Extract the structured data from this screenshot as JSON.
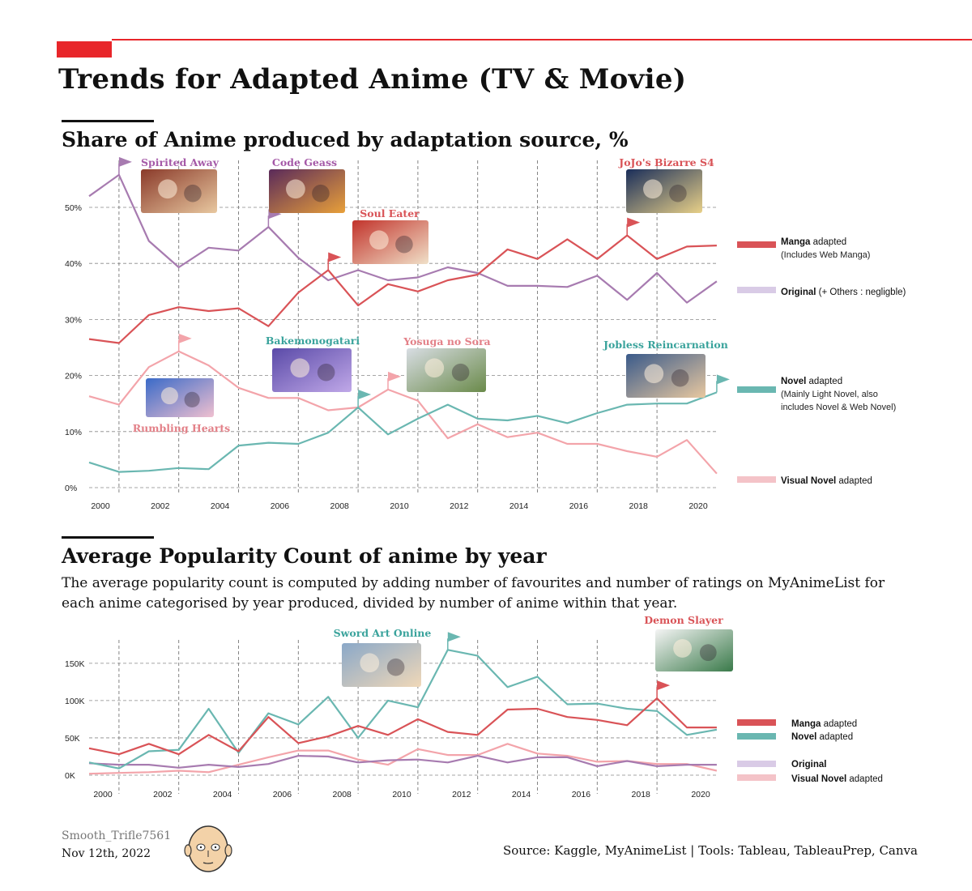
{
  "header": {
    "title": "Trends for Adapted Anime (TV & Movie)",
    "accent_color": "#e8262a"
  },
  "share_section": {
    "title": "Share of Anime produced by adaptation source, %"
  },
  "popularity_section": {
    "title": "Average Popularity Count of anime by year",
    "description": "The average popularity count is computed by adding number of favourites and number of ratings on MyAnimeList for each anime categorised by year produced, divided by number of anime within that year."
  },
  "footer": {
    "author": "Smooth_Trifle7561",
    "date": "Nov 12th, 2022",
    "source": "Source: Kaggle, MyAnimeList | Tools: Tableau, TableauPrep, Canva"
  },
  "chart_data": [
    {
      "type": "line",
      "title": "Share of Anime produced by adaptation source, %",
      "x": [
        2000,
        2001,
        2002,
        2003,
        2004,
        2005,
        2006,
        2007,
        2008,
        2009,
        2010,
        2011,
        2012,
        2013,
        2014,
        2015,
        2016,
        2017,
        2018,
        2019,
        2020,
        2021
      ],
      "x_ticks": [
        "2000",
        "2002",
        "2004",
        "2006",
        "2008",
        "2010",
        "2012",
        "2014",
        "2016",
        "2018",
        "2020"
      ],
      "y_ticks": [
        "0%",
        "10%",
        "20%",
        "30%",
        "40%",
        "50%"
      ],
      "ylim": [
        0,
        60
      ],
      "grid": true,
      "legend_position": "right",
      "series": [
        {
          "key": "manga",
          "color": "#d95357",
          "values": [
            26.5,
            25.8,
            30.8,
            32.2,
            31.5,
            32.0,
            28.8,
            34.8,
            38.8,
            32.5,
            36.3,
            35.0,
            37.0,
            38.0,
            42.5,
            40.8,
            44.3,
            40.8,
            45.0,
            40.8,
            43.0,
            43.2
          ]
        },
        {
          "key": "original",
          "color": "#a77bb0",
          "values": [
            52.0,
            55.8,
            44.0,
            39.3,
            42.8,
            42.3,
            46.5,
            41.0,
            37.0,
            38.8,
            37.0,
            37.5,
            39.3,
            38.3,
            36.0,
            36.0,
            35.8,
            37.8,
            33.5,
            38.3,
            33.0,
            36.8
          ]
        },
        {
          "key": "novel",
          "color": "#6ab7b1",
          "values": [
            4.5,
            2.8,
            3.0,
            3.5,
            3.3,
            7.5,
            8.0,
            7.8,
            9.8,
            14.3,
            9.5,
            12.3,
            14.8,
            12.3,
            12.0,
            12.8,
            11.5,
            13.3,
            14.8,
            15.0,
            15.0,
            17.0
          ]
        },
        {
          "key": "visual",
          "color": "#f3a4aa",
          "values": [
            16.3,
            14.8,
            21.5,
            24.3,
            21.8,
            17.8,
            16.0,
            16.0,
            13.8,
            14.3,
            17.5,
            15.5,
            8.8,
            11.3,
            9.0,
            9.8,
            7.8,
            7.8,
            6.5,
            5.5,
            8.5,
            2.5
          ]
        }
      ],
      "legend": [
        {
          "key": "manga",
          "bold": "Manga",
          "rest": " adapted",
          "note": "(Includes Web Manga)",
          "color": "#d95357"
        },
        {
          "key": "original",
          "bold": "Original",
          "rest": " (+ Others : negligble)",
          "note": "",
          "color": "#d9cbe6"
        },
        {
          "key": "novel",
          "bold": "Novel",
          "rest": " adapted",
          "note": "(Mainly Light Novel, also|includes Novel & Web Novel)",
          "color": "#6ab7b1"
        },
        {
          "key": "visual",
          "bold": "Visual Novel",
          "rest": " adapted",
          "note": "",
          "color": "#f4c3c8"
        }
      ],
      "annotations": [
        {
          "label": "Spirited Away",
          "color": "#a55aa8",
          "series": "original",
          "x": 2001
        },
        {
          "label": "Code Geass",
          "color": "#a55aa8",
          "series": "original",
          "x": 2006
        },
        {
          "label": "Soul Eater",
          "color": "#d95357",
          "series": "manga",
          "x": 2008
        },
        {
          "label": "JoJo's Bizarre S4",
          "color": "#d95357",
          "series": "manga",
          "x": 2018
        },
        {
          "label": "Bakemonogatari",
          "color": "#3aa39c",
          "series": "novel",
          "x": 2009
        },
        {
          "label": "Yosuga no Sora",
          "color": "#e38088",
          "series": "visual",
          "x": 2010
        },
        {
          "label": "Jobless Reincarnation",
          "color": "#3aa39c",
          "series": "novel",
          "x": 2021
        },
        {
          "label": "Rumbling Hearts",
          "color": "#e38088",
          "series": "visual",
          "x": 2003
        }
      ]
    },
    {
      "type": "line",
      "title": "Average Popularity Count of anime by year",
      "x": [
        2000,
        2001,
        2002,
        2003,
        2004,
        2005,
        2006,
        2007,
        2008,
        2009,
        2010,
        2011,
        2012,
        2013,
        2014,
        2015,
        2016,
        2017,
        2018,
        2019,
        2020,
        2021
      ],
      "x_ticks": [
        "2000",
        "2002",
        "2004",
        "2006",
        "2008",
        "2010",
        "2012",
        "2014",
        "2016",
        "2018",
        "2020"
      ],
      "y_ticks": [
        "0K",
        "50K",
        "100K",
        "150K"
      ],
      "ylim": [
        0,
        180000
      ],
      "grid": true,
      "legend_position": "right",
      "series": [
        {
          "key": "manga",
          "color": "#d95357",
          "values": [
            36000,
            28000,
            42000,
            28000,
            54000,
            32000,
            78000,
            43000,
            52000,
            66000,
            54000,
            75000,
            58000,
            54000,
            88000,
            89000,
            78000,
            74000,
            67000,
            103000,
            64000,
            64000
          ]
        },
        {
          "key": "novel",
          "color": "#6ab7b1",
          "values": [
            17000,
            9000,
            32000,
            34000,
            89000,
            30000,
            83000,
            68000,
            105000,
            50000,
            100000,
            91000,
            168000,
            160000,
            118000,
            132000,
            95000,
            96000,
            89000,
            86000,
            54000,
            61000
          ]
        },
        {
          "key": "original",
          "color": "#a77bb0",
          "values": [
            16000,
            14000,
            14000,
            10000,
            14000,
            11000,
            15000,
            26000,
            25000,
            17000,
            20000,
            21000,
            17000,
            26000,
            17000,
            24000,
            24000,
            12000,
            19000,
            12000,
            14000,
            14000
          ]
        },
        {
          "key": "visual",
          "color": "#f3a4aa",
          "values": [
            2000,
            3000,
            4000,
            6000,
            4000,
            14000,
            24000,
            33000,
            33000,
            21000,
            14000,
            35000,
            27000,
            27000,
            42000,
            29000,
            26000,
            18000,
            19000,
            15000,
            15000,
            6000
          ]
        }
      ],
      "legend": [
        {
          "key": "manga",
          "bold": "Manga",
          "rest": " adapted",
          "color": "#d95357"
        },
        {
          "key": "novel",
          "bold": "Novel",
          "rest": " adapted",
          "color": "#6ab7b1"
        },
        {
          "key": "original",
          "bold": "Original",
          "rest": "",
          "color": "#d9cbe6"
        },
        {
          "key": "visual",
          "bold": "Visual Novel",
          "rest": " adapted",
          "color": "#f4c3c8"
        }
      ],
      "annotations": [
        {
          "label": "Sword Art Online",
          "color": "#3aa39c",
          "series": "novel",
          "x": 2012
        },
        {
          "label": "Demon Slayer",
          "color": "#d95357",
          "series": "manga",
          "x": 2019
        }
      ]
    }
  ]
}
